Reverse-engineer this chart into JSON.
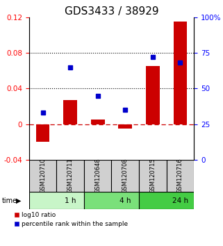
{
  "title": "GDS3433 / 38929",
  "samples": [
    "GSM120710",
    "GSM120711",
    "GSM120648",
    "GSM120708",
    "GSM120715",
    "GSM120716"
  ],
  "log10_ratio": [
    -0.02,
    0.027,
    0.005,
    -0.005,
    0.065,
    0.115
  ],
  "percentile_rank": [
    33,
    65,
    45,
    35,
    72,
    68
  ],
  "left_ylim": [
    -0.04,
    0.12
  ],
  "right_ylim": [
    0,
    100
  ],
  "left_yticks": [
    -0.04,
    0,
    0.04,
    0.08,
    0.12
  ],
  "left_yticklabels": [
    "-0.04",
    "0",
    "0.04",
    "0.08",
    "0.12"
  ],
  "right_yticks": [
    0,
    25,
    50,
    75,
    100
  ],
  "right_yticklabels": [
    "0",
    "25",
    "50",
    "75",
    "100%"
  ],
  "dotted_lines": [
    0.04,
    0.08
  ],
  "time_groups": [
    {
      "label": "1 h",
      "start": 0,
      "end": 2,
      "color": "#c8f5c8"
    },
    {
      "label": "4 h",
      "start": 2,
      "end": 4,
      "color": "#7ae07a"
    },
    {
      "label": "24 h",
      "start": 4,
      "end": 6,
      "color": "#44cc44"
    }
  ],
  "bar_color": "#cc0000",
  "marker_color": "#0000cc",
  "bar_width": 0.5,
  "sample_box_color": "#d0d0d0",
  "legend_labels": [
    "log10 ratio",
    "percentile rank within the sample"
  ],
  "title_fontsize": 11,
  "tick_fontsize": 7.5,
  "label_fontsize": 7
}
